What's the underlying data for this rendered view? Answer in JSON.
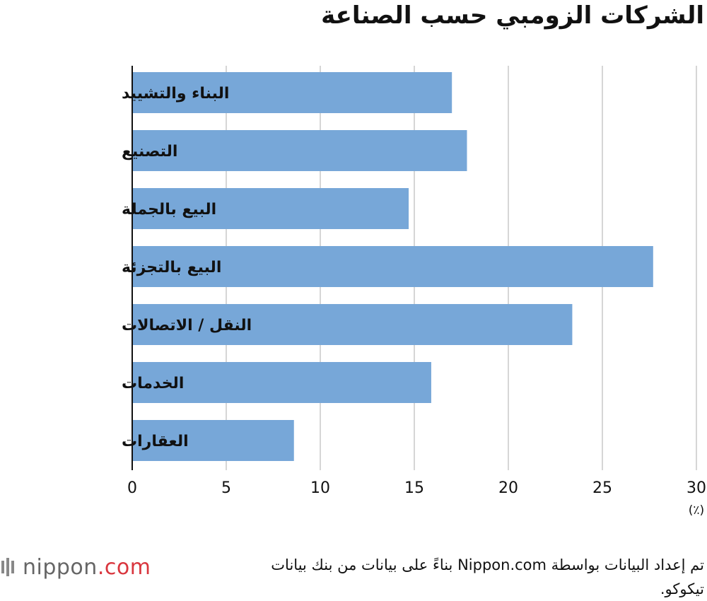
{
  "chart_data": {
    "type": "bar",
    "orientation": "horizontal",
    "title": "الشركات الزومبي حسب الصناعة",
    "categories": [
      "البناء والتشييد",
      "التصنيع",
      "البيع بالجملة",
      "البيع بالتجزئة",
      "النقل / الاتصالات",
      "الخدمات",
      "العقارات"
    ],
    "values": [
      17.0,
      17.8,
      14.7,
      27.7,
      23.4,
      15.9,
      8.6
    ],
    "xlim": [
      0,
      30
    ],
    "xticks": [
      0,
      5,
      10,
      15,
      20,
      25,
      30
    ],
    "unit": "(٪)",
    "grid": true,
    "bar_color": "#77a7d8"
  },
  "source_note": "تم إعداد البيانات بواسطة Nippon.com بناءً على بيانات من بنك بيانات تيكوكو.",
  "logo": {
    "name": "nippon",
    "suffix": ".com"
  }
}
